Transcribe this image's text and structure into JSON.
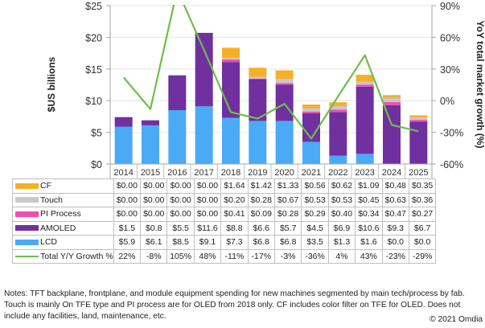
{
  "chart_data": {
    "type": "bar",
    "stacked": true,
    "categories": [
      "2014",
      "2015",
      "2016",
      "2017",
      "2018",
      "2019",
      "2020",
      "2021",
      "2022",
      "2023",
      "2024",
      "2025"
    ],
    "ylabel": "$US billions",
    "y2label": "YoY total market growth (%)",
    "ylim": [
      0,
      25
    ],
    "yticks": [
      0,
      5,
      10,
      15,
      20,
      25
    ],
    "ytick_labels": [
      "$0",
      "$5",
      "$10",
      "$15",
      "$20",
      "$25"
    ],
    "y2lim": [
      -60,
      90
    ],
    "y2ticks": [
      -60,
      -30,
      0,
      30,
      60,
      90
    ],
    "y2tick_labels": [
      "-60%",
      "-30%",
      "0%",
      "30%",
      "60%",
      "90%"
    ],
    "grid": true,
    "series": [
      {
        "name": "LCD",
        "color": "#4aaaf5",
        "values": [
          5.9,
          6.1,
          8.5,
          9.1,
          7.3,
          6.8,
          6.8,
          3.5,
          1.3,
          1.6,
          0.0,
          0.0
        ],
        "labels": [
          "$5.9",
          "$6.1",
          "$8.5",
          "$9.1",
          "$7.3",
          "$6.8",
          "$6.8",
          "$3.5",
          "$1.3",
          "$1.6",
          "$0.0",
          "$0.0"
        ]
      },
      {
        "name": "AMOLED",
        "color": "#7030a0",
        "values": [
          1.5,
          0.8,
          5.5,
          11.6,
          8.8,
          6.6,
          5.7,
          4.5,
          6.9,
          10.6,
          9.3,
          6.7
        ],
        "labels": [
          "$1.5",
          "$0.8",
          "$5.5",
          "$11.6",
          "$8.8",
          "$6.6",
          "$5.7",
          "$4.5",
          "$6.9",
          "$10.6",
          "$9.3",
          "$6.7"
        ]
      },
      {
        "name": "PI Process",
        "color": "#ef4fb0",
        "values": [
          0,
          0,
          0,
          0,
          0.41,
          0.09,
          0.28,
          0.29,
          0.4,
          0.34,
          0.47,
          0.27
        ],
        "labels": [
          "$0.00",
          "$0.00",
          "$0.00",
          "$0.00",
          "$0.41",
          "$0.09",
          "$0.28",
          "$0.29",
          "$0.40",
          "$0.34",
          "$0.47",
          "$0.27"
        ]
      },
      {
        "name": "Touch",
        "color": "#c8c8c8",
        "values": [
          0,
          0,
          0,
          0,
          0.2,
          0.28,
          0.67,
          0.53,
          0.53,
          0.45,
          0.63,
          0.36
        ],
        "labels": [
          "$0.00",
          "$0.00",
          "$0.00",
          "$0.00",
          "$0.20",
          "$0.28",
          "$0.67",
          "$0.53",
          "$0.53",
          "$0.45",
          "$0.63",
          "$0.36"
        ]
      },
      {
        "name": "CF",
        "color": "#f5b027",
        "values": [
          0,
          0,
          0,
          0,
          1.64,
          1.42,
          1.33,
          0.56,
          0.62,
          1.09,
          0.48,
          0.35
        ],
        "labels": [
          "$0.00",
          "$0.00",
          "$0.00",
          "$0.00",
          "$1.64",
          "$1.42",
          "$1.33",
          "$0.56",
          "$0.62",
          "$1.09",
          "$0.48",
          "$0.35"
        ]
      }
    ],
    "line_series": {
      "name": "Total Y/Y Growth %",
      "color": "#6cbf4a",
      "axis": "right",
      "values": [
        22,
        -8,
        105,
        48,
        -11,
        -17,
        -3,
        -36,
        4,
        43,
        -23,
        -29
      ],
      "labels": [
        "22%",
        "-8%",
        "105%",
        "48%",
        "-11%",
        "-17%",
        "-3%",
        "-36%",
        "4%",
        "43%",
        "-23%",
        "-29%"
      ]
    },
    "table_row_order": [
      "CF",
      "Touch",
      "PI Process",
      "AMOLED",
      "LCD",
      "Total Y/Y Growth %"
    ]
  },
  "notes": "Notes: TFT backplane, frontplane, and module equipment spending for new machines segmented by main tech/process by fab. Touch is mainly On TFE type and PI process are for OLED from 2018 only. CF includes color filter on TFE for OLED. Does not include any facilities, land, maintenance, etc.",
  "copyright": "© 2021 Omdia"
}
